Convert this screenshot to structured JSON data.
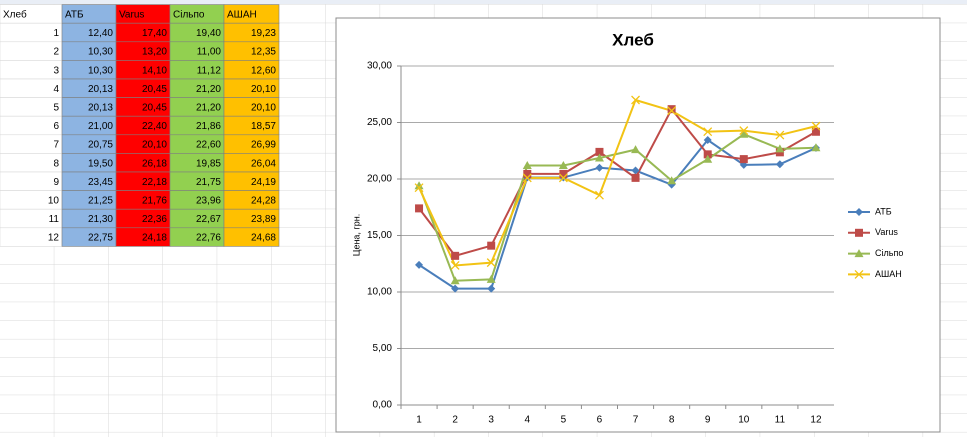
{
  "table": {
    "header": [
      "Хлеб",
      "АТБ",
      "Varus",
      "Сільпо",
      "АШАН"
    ],
    "rows": [
      [
        "1",
        "12,40",
        "17,40",
        "19,40",
        "19,23"
      ],
      [
        "2",
        "10,30",
        "13,20",
        "11,00",
        "12,35"
      ],
      [
        "3",
        "10,30",
        "14,10",
        "11,12",
        "12,60"
      ],
      [
        "4",
        "20,13",
        "20,45",
        "21,20",
        "20,10"
      ],
      [
        "5",
        "20,13",
        "20,45",
        "21,20",
        "20,10"
      ],
      [
        "6",
        "21,00",
        "22,40",
        "21,86",
        "18,57"
      ],
      [
        "7",
        "20,75",
        "20,10",
        "22,60",
        "26,99"
      ],
      [
        "8",
        "19,50",
        "26,18",
        "19,85",
        "26,04"
      ],
      [
        "9",
        "23,45",
        "22,18",
        "21,75",
        "24,19"
      ],
      [
        "10",
        "21,25",
        "21,76",
        "23,96",
        "24,28"
      ],
      [
        "11",
        "21,30",
        "22,36",
        "22,67",
        "23,89"
      ],
      [
        "12",
        "22,75",
        "24,18",
        "22,76",
        "24,68"
      ]
    ],
    "column_colors": [
      null,
      "#8db4e2",
      "#ff0000",
      "#92d050",
      "#ffc000"
    ]
  },
  "chart_data": {
    "type": "line",
    "title": "Хлеб",
    "y_label": "Цена, грн.",
    "categories": [
      "1",
      "2",
      "3",
      "4",
      "5",
      "6",
      "7",
      "8",
      "9",
      "10",
      "11",
      "12"
    ],
    "series": [
      {
        "name": "АТБ",
        "color": "#4a7ebb",
        "marker": "diamond",
        "values": [
          12.4,
          10.3,
          10.3,
          20.13,
          20.13,
          21.0,
          20.75,
          19.5,
          23.45,
          21.25,
          21.3,
          22.75
        ]
      },
      {
        "name": "Varus",
        "color": "#be4b48",
        "marker": "square",
        "values": [
          17.4,
          13.2,
          14.1,
          20.45,
          20.45,
          22.4,
          20.1,
          26.18,
          22.18,
          21.76,
          22.36,
          24.18
        ]
      },
      {
        "name": "Сільпо",
        "color": "#98b954",
        "marker": "triangle",
        "values": [
          19.4,
          11.0,
          11.12,
          21.2,
          21.2,
          21.86,
          22.6,
          19.85,
          21.75,
          23.96,
          22.67,
          22.76
        ]
      },
      {
        "name": "АШАН",
        "color": "#f2c314",
        "marker": "x",
        "values": [
          19.23,
          12.35,
          12.6,
          20.1,
          20.1,
          18.57,
          26.99,
          26.04,
          24.19,
          24.28,
          23.89,
          24.68
        ]
      }
    ],
    "ylim": [
      0,
      30
    ],
    "yticks": [
      {
        "value": 0,
        "label": "0,00"
      },
      {
        "value": 5,
        "label": "5,00"
      },
      {
        "value": 10,
        "label": "10,00"
      },
      {
        "value": 15,
        "label": "15,00"
      },
      {
        "value": 20,
        "label": "20,00"
      },
      {
        "value": 25,
        "label": "25,00"
      },
      {
        "value": 30,
        "label": "30,00"
      }
    ],
    "grid": true,
    "legend": "right"
  }
}
